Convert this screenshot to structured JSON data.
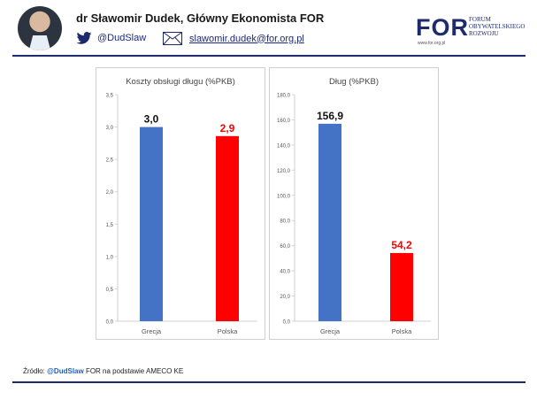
{
  "header": {
    "author": "dr Sławomir Dudek, Główny Ekonomista FOR",
    "twitter_handle": "@DudSlaw",
    "email": "slawomir.dudek@for.org.pl",
    "logo_main": "FOR",
    "logo_lines": [
      "FORUM",
      "OBYWATELSKIEGO",
      "ROZWOJU"
    ],
    "logo_url": "www.for.org.pl"
  },
  "colors": {
    "greece": "#4472c4",
    "poland": "#ff0000",
    "navy": "#1d2a6b"
  },
  "chart_data": [
    {
      "type": "bar",
      "title": "Koszty obsługi długu (%PKB)",
      "categories": [
        "Grecja",
        "Polska"
      ],
      "values": [
        3.0,
        2.86
      ],
      "labels": [
        "3,0",
        "2,9"
      ],
      "ylim": [
        0,
        3.5
      ],
      "yticks": [
        0,
        0.5,
        1.0,
        1.5,
        2.0,
        2.5,
        3.0,
        3.5
      ],
      "ytick_labels": [
        "0,0",
        "0,5",
        "1,0",
        "1,5",
        "2,0",
        "2,5",
        "3,0",
        "3,5"
      ],
      "grid": false
    },
    {
      "type": "bar",
      "title": "Dług (%PKB)",
      "categories": [
        "Grecja",
        "Polska"
      ],
      "values": [
        156.9,
        54.2
      ],
      "labels": [
        "156,9",
        "54,2"
      ],
      "ylim": [
        0,
        180
      ],
      "yticks": [
        0,
        20,
        40,
        60,
        80,
        100,
        120,
        140,
        160,
        180
      ],
      "ytick_labels": [
        "0,0",
        "20,0",
        "40,0",
        "60,0",
        "80,0",
        "100,0",
        "120,0",
        "140,0",
        "160,0",
        "180,0"
      ],
      "grid": false
    }
  ],
  "footer": {
    "prefix": "Źródło: ",
    "handle": "@DudSlaw",
    "suffix": " FOR na podstawie AMECO KE"
  }
}
